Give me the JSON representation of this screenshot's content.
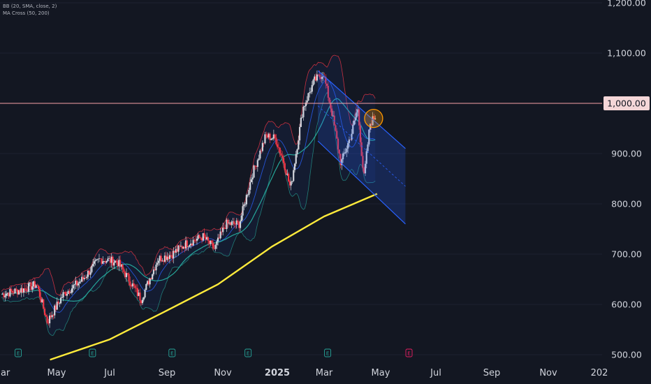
{
  "legend": {
    "bb": "BB (20, SMA, close, 2)",
    "ma": "MA Cross (50, 200)"
  },
  "colors": {
    "background": "#131722",
    "up": "#d1d4dc",
    "down": "#f23645",
    "bb_band": "#f23645",
    "bb_basis": "#2962ff",
    "bb_fill": "#2962ff",
    "ma50": "#26a69a",
    "ma200": "#ffeb3b",
    "horizontal_line": "#f7a1a7",
    "price_tag": "#f4d6d8",
    "channel": "#2962ff",
    "circle": "#ff9800",
    "earnings_marker": "#26a69a",
    "future_earnings": "#e91e63"
  },
  "chart_data": {
    "type": "candlestick",
    "x_ticks": [
      "Mar",
      "May",
      "Jul",
      "Sep",
      "Nov",
      "2025",
      "Mar",
      "May",
      "Jul",
      "Sep",
      "Nov",
      "202"
    ],
    "y_ticks": [
      "1,200.00",
      "1,100.00",
      "1,000.00",
      "900.00",
      "800.00",
      "700.00",
      "600.00",
      "500.00"
    ],
    "y_values": [
      1200,
      1100,
      1000,
      900,
      800,
      700,
      600,
      500
    ],
    "ylim": [
      500,
      1200
    ],
    "horizontal_level": {
      "value": 1000,
      "label": "1,000.00"
    },
    "price_path": [
      {
        "date": "2024-03-01",
        "price": 620
      },
      {
        "date": "2024-03-25",
        "price": 630
      },
      {
        "date": "2024-04-10",
        "price": 640
      },
      {
        "date": "2024-04-22",
        "price": 565
      },
      {
        "date": "2024-05-10",
        "price": 620
      },
      {
        "date": "2024-06-01",
        "price": 650
      },
      {
        "date": "2024-06-20",
        "price": 690
      },
      {
        "date": "2024-07-10",
        "price": 685
      },
      {
        "date": "2024-07-25",
        "price": 645
      },
      {
        "date": "2024-08-06",
        "price": 610
      },
      {
        "date": "2024-08-25",
        "price": 690
      },
      {
        "date": "2024-09-10",
        "price": 700
      },
      {
        "date": "2024-09-25",
        "price": 720
      },
      {
        "date": "2024-10-15",
        "price": 735
      },
      {
        "date": "2024-10-28",
        "price": 710
      },
      {
        "date": "2024-11-10",
        "price": 760
      },
      {
        "date": "2024-11-25",
        "price": 760
      },
      {
        "date": "2024-12-10",
        "price": 860
      },
      {
        "date": "2024-12-25",
        "price": 935
      },
      {
        "date": "2025-01-05",
        "price": 930
      },
      {
        "date": "2025-01-15",
        "price": 880
      },
      {
        "date": "2025-01-22",
        "price": 830
      },
      {
        "date": "2025-02-05",
        "price": 990
      },
      {
        "date": "2025-02-18",
        "price": 1045
      },
      {
        "date": "2025-02-28",
        "price": 1060
      },
      {
        "date": "2025-03-10",
        "price": 980
      },
      {
        "date": "2025-03-20",
        "price": 880
      },
      {
        "date": "2025-04-01",
        "price": 940
      },
      {
        "date": "2025-04-08",
        "price": 990
      },
      {
        "date": "2025-04-15",
        "price": 850
      },
      {
        "date": "2025-04-22",
        "price": 960
      },
      {
        "date": "2025-04-28",
        "price": 975
      }
    ],
    "ma200": [
      {
        "date": "2024-04-25",
        "price": 490
      },
      {
        "date": "2024-07-01",
        "price": 530
      },
      {
        "date": "2024-09-01",
        "price": 585
      },
      {
        "date": "2024-11-01",
        "price": 640
      },
      {
        "date": "2025-01-01",
        "price": 715
      },
      {
        "date": "2025-03-01",
        "price": 775
      },
      {
        "date": "2025-04-30",
        "price": 820
      }
    ],
    "channel": {
      "upper": [
        {
          "date": "2025-02-22",
          "price": 1065
        },
        {
          "date": "2025-06-01",
          "price": 910
        }
      ],
      "lower": [
        {
          "date": "2025-02-22",
          "price": 925
        },
        {
          "date": "2025-06-01",
          "price": 760
        }
      ],
      "mid": [
        {
          "date": "2025-02-22",
          "price": 995
        },
        {
          "date": "2025-06-01",
          "price": 835
        }
      ]
    },
    "highlight_circle": {
      "date": "2025-04-26",
      "price": 970
    },
    "earnings_markers": [
      {
        "date": "2024-03-20",
        "label": "E",
        "future": false
      },
      {
        "date": "2024-06-12",
        "label": "E",
        "future": false
      },
      {
        "date": "2024-09-10",
        "label": "E",
        "future": false
      },
      {
        "date": "2024-12-05",
        "label": "E",
        "future": false
      },
      {
        "date": "2025-03-05",
        "label": "E",
        "future": false
      },
      {
        "date": "2025-06-05",
        "label": "E",
        "future": true
      }
    ]
  }
}
